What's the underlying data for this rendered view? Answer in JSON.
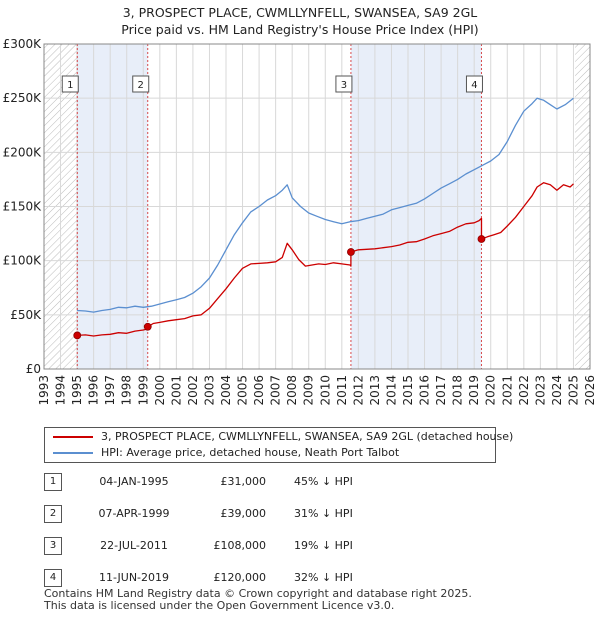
{
  "title_line1": "3, PROSPECT PLACE, CWMLLYNFELL, SWANSEA, SA9 2GL",
  "title_line2": "Price paid vs. HM Land Registry's House Price Index (HPI)",
  "colors": {
    "property": "#cc0000",
    "hpi": "#5b8fd0",
    "shade": "#e8eef9",
    "grid": "#d8d8d8"
  },
  "chart_data": {
    "type": "line",
    "title": "3, PROSPECT PLACE, CWMLLYNFELL, SWANSEA, SA9 2GL — Price paid vs. HM Land Registry's House Price Index (HPI)",
    "xlabel": "",
    "ylabel": "",
    "xlim": [
      1993,
      2026
    ],
    "ylim": [
      0,
      300000
    ],
    "x_ticks": [
      1993,
      1994,
      1995,
      1996,
      1997,
      1998,
      1999,
      2000,
      2001,
      2002,
      2003,
      2004,
      2005,
      2006,
      2007,
      2008,
      2009,
      2010,
      2011,
      2012,
      2013,
      2014,
      2015,
      2016,
      2017,
      2018,
      2019,
      2020,
      2021,
      2022,
      2023,
      2024,
      2025,
      2026
    ],
    "y_ticks": [
      0,
      50000,
      100000,
      150000,
      200000,
      250000,
      300000
    ],
    "y_tick_labels": [
      "£0",
      "£50K",
      "£100K",
      "£150K",
      "£200K",
      "£250K",
      "£300K"
    ],
    "hatched_regions": [
      [
        1993,
        1995.0
      ],
      [
        2025.1,
        2026
      ]
    ],
    "shaded_regions": [
      [
        1995.0,
        1999.27
      ],
      [
        2011.55,
        2019.44
      ]
    ],
    "series": [
      {
        "name": "3, PROSPECT PLACE, CWMLLYNFELL, SWANSEA, SA9 2GL (detached house)",
        "color": "#cc0000",
        "x": [
          1995.0,
          1995.5,
          1996.0,
          1996.5,
          1997.0,
          1997.5,
          1998.0,
          1998.5,
          1999.0,
          1999.27,
          1999.27,
          1999.6,
          2000.0,
          2000.5,
          2001.0,
          2001.5,
          2002.0,
          2002.5,
          2003.0,
          2003.5,
          2004.0,
          2004.5,
          2005.0,
          2005.5,
          2006.0,
          2006.5,
          2007.0,
          2007.4,
          2007.7,
          2008.0,
          2008.4,
          2008.8,
          2009.2,
          2009.6,
          2010.0,
          2010.5,
          2011.0,
          2011.5,
          2011.55,
          2011.55,
          2012.0,
          2012.5,
          2013.0,
          2013.5,
          2014.0,
          2014.5,
          2015.0,
          2015.5,
          2016.0,
          2016.5,
          2017.0,
          2017.5,
          2018.0,
          2018.5,
          2019.0,
          2019.3,
          2019.44,
          2019.44,
          2019.8,
          2020.2,
          2020.6,
          2021.0,
          2021.5,
          2022.0,
          2022.5,
          2022.8,
          2023.2,
          2023.6,
          2024.0,
          2024.4,
          2024.8,
          2025.0
        ],
        "values": [
          31000,
          31500,
          30500,
          31500,
          32000,
          33500,
          33000,
          35000,
          36000,
          37000,
          39000,
          42000,
          43000,
          44500,
          45500,
          46500,
          49000,
          50000,
          56000,
          65000,
          74000,
          84000,
          93000,
          97000,
          97500,
          98000,
          99000,
          103000,
          116000,
          110000,
          101000,
          95000,
          96000,
          97000,
          96500,
          98000,
          97000,
          96000,
          95000,
          108000,
          110000,
          110500,
          111000,
          112000,
          113000,
          114500,
          117000,
          117500,
          120000,
          123000,
          125000,
          127000,
          131000,
          134000,
          135000,
          137000,
          139000,
          120000,
          122000,
          124000,
          126000,
          132000,
          140000,
          150000,
          160000,
          168000,
          172000,
          170000,
          165000,
          170000,
          168000,
          171000
        ]
      },
      {
        "name": "HPI: Average price, detached house, Neath Port Talbot",
        "color": "#5b8fd0",
        "x": [
          1995.0,
          1995.5,
          1996.0,
          1996.5,
          1997.0,
          1997.5,
          1998.0,
          1998.5,
          1999.0,
          1999.5,
          2000.0,
          2000.5,
          2001.0,
          2001.5,
          2002.0,
          2002.5,
          2003.0,
          2003.5,
          2004.0,
          2004.5,
          2005.0,
          2005.5,
          2006.0,
          2006.5,
          2007.0,
          2007.4,
          2007.7,
          2008.0,
          2008.5,
          2009.0,
          2009.5,
          2010.0,
          2010.5,
          2011.0,
          2011.5,
          2012.0,
          2012.5,
          2013.0,
          2013.5,
          2014.0,
          2014.5,
          2015.0,
          2015.5,
          2016.0,
          2016.5,
          2017.0,
          2017.5,
          2018.0,
          2018.5,
          2019.0,
          2019.5,
          2020.0,
          2020.5,
          2021.0,
          2021.5,
          2022.0,
          2022.5,
          2022.8,
          2023.2,
          2023.6,
          2024.0,
          2024.5,
          2025.0
        ],
        "values": [
          54000,
          53500,
          52500,
          54000,
          55000,
          57000,
          56500,
          58000,
          57000,
          58000,
          60000,
          62000,
          64000,
          66000,
          70000,
          76000,
          84000,
          96000,
          110000,
          124000,
          135000,
          145000,
          150000,
          156000,
          160000,
          165000,
          170000,
          158000,
          150000,
          144000,
          141000,
          138000,
          136000,
          134000,
          136000,
          137000,
          139000,
          141000,
          143000,
          147000,
          149000,
          151000,
          153000,
          157000,
          162000,
          167000,
          171000,
          175000,
          180000,
          184000,
          188000,
          192000,
          198000,
          210000,
          225000,
          238000,
          245000,
          250000,
          248000,
          244000,
          240000,
          244000,
          250000
        ]
      }
    ],
    "markers": [
      {
        "label": "1",
        "x": 1995.01,
        "y": 31000
      },
      {
        "label": "2",
        "x": 1999.27,
        "y": 39000
      },
      {
        "label": "3",
        "x": 2011.55,
        "y": 108000
      },
      {
        "label": "4",
        "x": 2019.44,
        "y": 120000
      }
    ],
    "legend_position": "below"
  },
  "legend": {
    "property": "3, PROSPECT PLACE, CWMLLYNFELL, SWANSEA, SA9 2GL (detached house)",
    "hpi": "HPI: Average price, detached house, Neath Port Talbot"
  },
  "sales": [
    {
      "num": "1",
      "date": "04-JAN-1995",
      "price": "£31,000",
      "hpi": "45% ↓ HPI"
    },
    {
      "num": "2",
      "date": "07-APR-1999",
      "price": "£39,000",
      "hpi": "31% ↓ HPI"
    },
    {
      "num": "3",
      "date": "22-JUL-2011",
      "price": "£108,000",
      "hpi": "19% ↓ HPI"
    },
    {
      "num": "4",
      "date": "11-JUN-2019",
      "price": "£120,000",
      "hpi": "32% ↓ HPI"
    }
  ],
  "footer_line1": "Contains HM Land Registry data © Crown copyright and database right 2025.",
  "footer_line2": "This data is licensed under the Open Government Licence v3.0."
}
